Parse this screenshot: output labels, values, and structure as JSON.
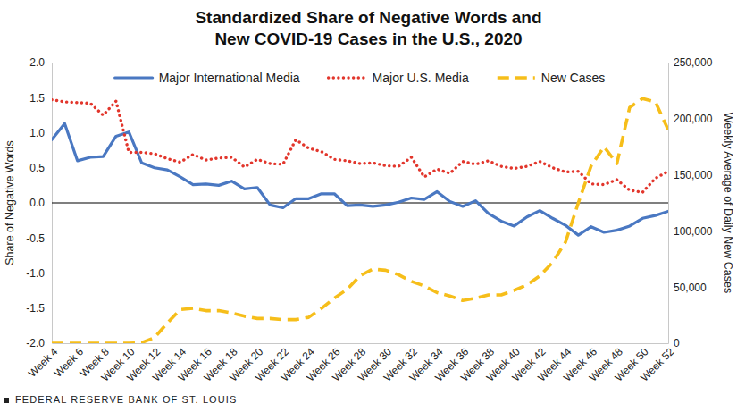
{
  "chart_data": {
    "type": "line",
    "title": "Standardized Share of Negative Words and\nNew COVID-19 Cases in the U.S., 2020",
    "ylabel": "Share of Negative Words",
    "y2label": "Weekly Average of Daily New Cases",
    "source": "FEDERAL RESERVE BANK OF ST. LOUIS",
    "legend": "top",
    "grid": false,
    "categories": [
      "Week 4",
      null,
      "Week 6",
      null,
      "Week 8",
      null,
      "Week 10",
      null,
      "Week 12",
      null,
      "Week 14",
      null,
      "Week 16",
      null,
      "Week 18",
      null,
      "Week 20",
      null,
      "Week 22",
      null,
      "Week 24",
      null,
      "Week 26",
      null,
      "Week 28",
      null,
      "Week 30",
      null,
      "Week 32",
      null,
      "Week 34",
      null,
      "Week 36",
      null,
      "Week 38",
      null,
      "Week 40",
      null,
      "Week 42",
      null,
      "Week 44",
      null,
      "Week 46",
      null,
      "Week 48",
      null,
      "Week 50",
      null,
      "Week 52"
    ],
    "ylim": [
      -2,
      2
    ],
    "yticks": [
      {
        "value": -2,
        "label": "-2.0"
      },
      -1.5,
      {
        "value": -1,
        "label": "-1.0"
      },
      -0.5,
      {
        "value": 0,
        "label": "0.0"
      },
      0.5,
      {
        "value": 1,
        "label": "1.0"
      },
      1.5,
      {
        "value": 2,
        "label": "2.0"
      }
    ],
    "y2lim": [
      0,
      250000
    ],
    "y2ticks": [
      0,
      {
        "value": 50000,
        "label": "50,000"
      },
      {
        "value": 100000,
        "label": "100,000"
      },
      {
        "value": 150000,
        "label": "150,000"
      },
      {
        "value": 200000,
        "label": "200,000"
      },
      {
        "value": 250000,
        "label": "250,000"
      }
    ],
    "series": [
      {
        "name": "Major International Media",
        "color": "#4a78c2",
        "line_style": "solid",
        "values": [
          0.9,
          1.13,
          0.6,
          0.65,
          0.66,
          0.95,
          1.01,
          0.57,
          0.5,
          0.47,
          0.37,
          0.26,
          0.27,
          0.25,
          0.31,
          0.2,
          0.22,
          -0.03,
          -0.07,
          0.06,
          0.06,
          0.13,
          0.13,
          -0.04,
          -0.03,
          -0.05,
          -0.03,
          0.01,
          0.07,
          0.05,
          0.16,
          0.02,
          -0.05,
          0.03,
          -0.15,
          -0.26,
          -0.33,
          -0.2,
          -0.11,
          -0.22,
          -0.32,
          -0.46,
          -0.34,
          -0.42,
          -0.39,
          -0.33,
          -0.22,
          -0.18,
          -0.12
        ]
      },
      {
        "name": "Major U.S. Media",
        "color": "#e2362c",
        "line_style": "dotted",
        "values": [
          1.47,
          1.44,
          1.43,
          1.42,
          1.25,
          1.45,
          0.72,
          0.72,
          0.7,
          0.63,
          0.58,
          0.69,
          0.61,
          0.64,
          0.65,
          0.51,
          0.62,
          0.56,
          0.55,
          0.9,
          0.78,
          0.73,
          0.62,
          0.6,
          0.56,
          0.57,
          0.53,
          0.52,
          0.65,
          0.37,
          0.48,
          0.42,
          0.59,
          0.55,
          0.6,
          0.52,
          0.49,
          0.52,
          0.59,
          0.5,
          0.44,
          0.45,
          0.27,
          0.26,
          0.33,
          0.18,
          0.15,
          0.35,
          0.45
        ]
      },
      {
        "name": "New Cases",
        "color": "#f6be1a",
        "line_style": "dashed",
        "axis": "y2",
        "values": [
          0,
          0,
          0,
          0,
          0,
          0,
          0,
          500,
          5000,
          18000,
          30000,
          31000,
          29000,
          29000,
          27000,
          24000,
          22000,
          22000,
          21000,
          21000,
          23000,
          31000,
          40000,
          48000,
          60000,
          66000,
          65000,
          61000,
          55000,
          51000,
          45000,
          42000,
          38000,
          40000,
          43000,
          43000,
          47000,
          52000,
          60000,
          72000,
          90000,
          125000,
          158000,
          175000,
          160000,
          210000,
          218000,
          215000,
          190000
        ]
      }
    ]
  }
}
